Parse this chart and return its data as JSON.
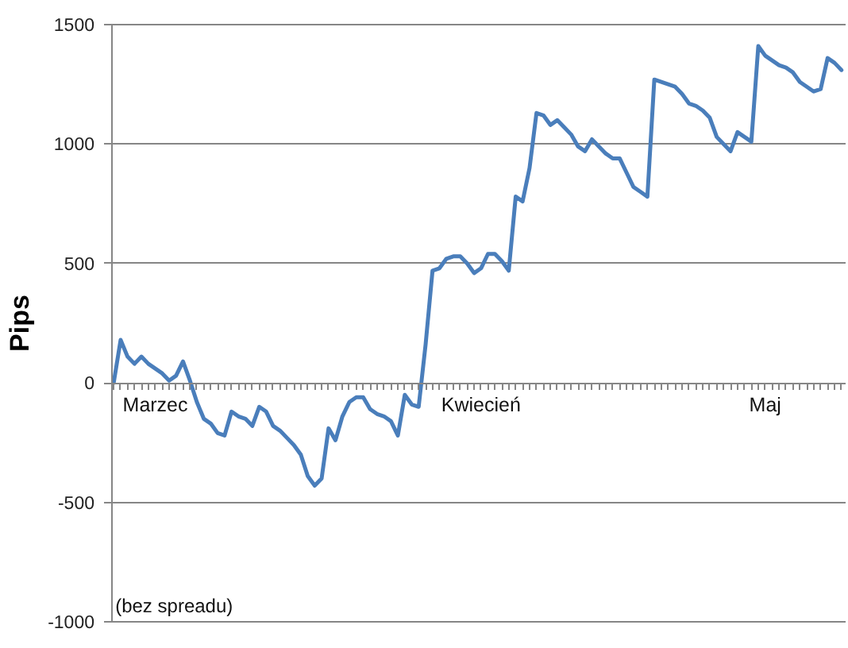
{
  "chart_data": {
    "type": "line",
    "ylabel": "Pips",
    "annotations": [
      "(bez spreadu)"
    ],
    "categories": [
      null,
      null,
      null,
      null,
      null,
      null,
      "Marzec",
      null,
      null,
      null,
      null,
      null,
      null,
      null,
      null,
      null,
      null,
      null,
      null,
      null,
      null,
      null,
      null,
      null,
      null,
      null,
      null,
      null,
      null,
      null,
      null,
      null,
      null,
      null,
      null,
      null,
      null,
      null,
      null,
      null,
      null,
      null,
      null,
      null,
      null,
      null,
      null,
      null,
      null,
      null,
      null,
      null,
      null,
      "Kwiecień",
      null,
      null,
      null,
      null,
      null,
      null,
      null,
      null,
      null,
      null,
      null,
      null,
      null,
      null,
      null,
      null,
      null,
      null,
      null,
      null,
      null,
      null,
      null,
      null,
      null,
      null,
      null,
      null,
      null,
      null,
      null,
      null,
      null,
      null,
      null,
      null,
      null,
      null,
      null,
      null,
      "Maj",
      null,
      null,
      null,
      null,
      null,
      null,
      null,
      null,
      null,
      null,
      null
    ],
    "series": [
      {
        "color": "#4a7ebb",
        "values": [
          0,
          180,
          110,
          80,
          110,
          80,
          60,
          40,
          10,
          30,
          90,
          10,
          -80,
          -150,
          -170,
          -210,
          -220,
          -120,
          -140,
          -150,
          -180,
          -100,
          -120,
          -180,
          -200,
          -230,
          -260,
          -300,
          -390,
          -430,
          -400,
          -190,
          -240,
          -140,
          -80,
          -60,
          -60,
          -110,
          -130,
          -140,
          -160,
          -220,
          -50,
          -90,
          -100,
          160,
          470,
          480,
          520,
          530,
          530,
          500,
          460,
          480,
          540,
          540,
          510,
          470,
          780,
          760,
          900,
          1130,
          1120,
          1080,
          1100,
          1070,
          1040,
          990,
          970,
          1020,
          990,
          960,
          940,
          940,
          880,
          820,
          800,
          780,
          1270,
          1260,
          1250,
          1240,
          1210,
          1170,
          1160,
          1140,
          1110,
          1030,
          1000,
          970,
          1050,
          1030,
          1010,
          1410,
          1370,
          1350,
          1330,
          1320,
          1300,
          1260,
          1240,
          1220,
          1230,
          1360,
          1340,
          1310
        ]
      }
    ],
    "ylim": [
      -1000,
      1500
    ],
    "yticks": [
      -1000,
      -500,
      0,
      500,
      1000,
      1500
    ],
    "grid": "y",
    "line_style": "solid"
  }
}
